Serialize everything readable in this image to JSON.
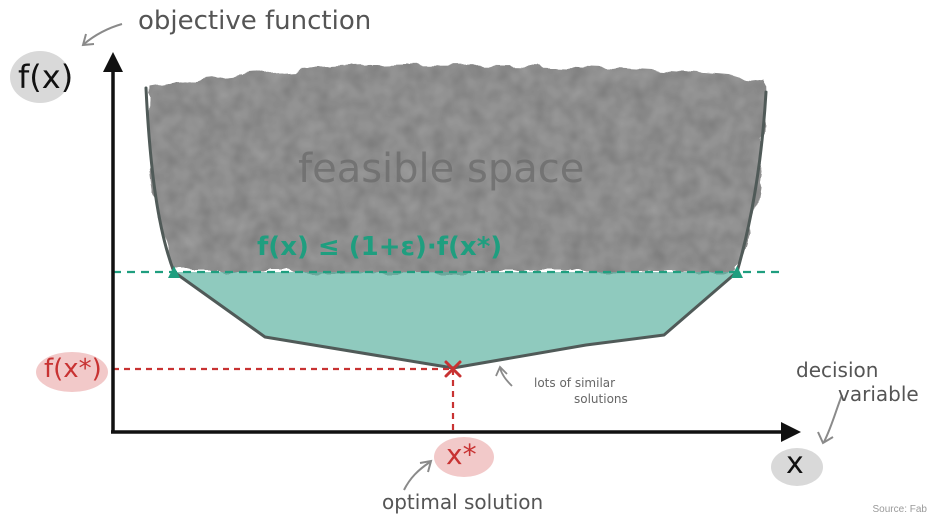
{
  "diagram": {
    "y_axis_label": "f(x)",
    "x_axis_label": "x",
    "annotations": {
      "objective_function": "objective function",
      "decision_variable_line1": "decision",
      "decision_variable_line2": "variable",
      "optimal_solution": "optimal solution",
      "similar_solutions_line1": "lots of similar",
      "similar_solutions_line2": "solutions"
    },
    "region_label": "feasible space",
    "threshold_formula": "f(x) ≤ (1+ε)·f(x*)",
    "optimal_value_label": "f(x*)",
    "optimal_point_label": "x*",
    "source": "Source: Fab"
  },
  "colors": {
    "feasible_fill": "#8c8c8c",
    "near_optimal_fill": "#5fb3a2",
    "threshold_line": "#1f9e7f",
    "optimum_marker": "#c83232",
    "optimum_highlight": "#f2c9c9",
    "axis": "#111111",
    "curve": "#505a58",
    "label_highlight": "#d9d9d9"
  }
}
